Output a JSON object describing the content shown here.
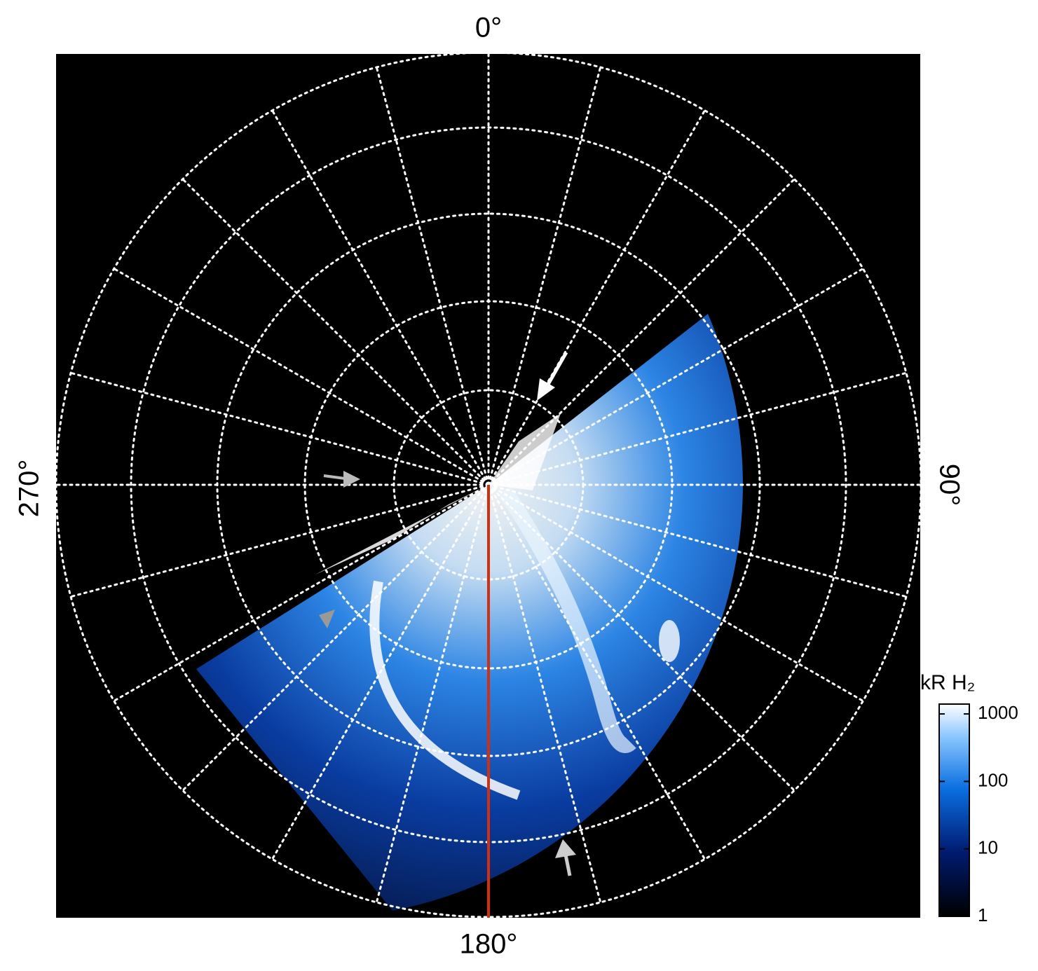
{
  "labels": {
    "top": "0°",
    "right": "90°",
    "bottom": "180°",
    "left": "270°"
  },
  "colorbar": {
    "title": "kR H₂",
    "scale": "log",
    "range": [
      1,
      1400
    ],
    "ticks": [
      1,
      10,
      100,
      1000
    ]
  }
}
